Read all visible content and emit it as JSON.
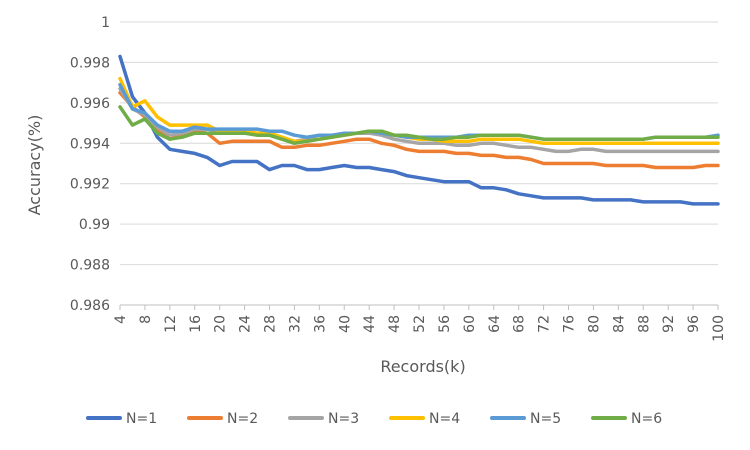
{
  "chart_data": {
    "type": "line",
    "xlabel": "Records(k)",
    "ylabel": "Accuracy(%)",
    "ylim": [
      0.986,
      1
    ],
    "yticks": [
      "0.986",
      "0.988",
      "0.99",
      "0.992",
      "0.994",
      "0.996",
      "0.998",
      "1"
    ],
    "xticks": [
      "4",
      "8",
      "12",
      "16",
      "20",
      "24",
      "28",
      "32",
      "36",
      "40",
      "44",
      "48",
      "52",
      "56",
      "60",
      "64",
      "68",
      "72",
      "76",
      "80",
      "84",
      "88",
      "92",
      "96",
      "100"
    ],
    "grid": "horizontal",
    "legend": "bottom",
    "x": [
      4,
      6,
      8,
      10,
      12,
      14,
      16,
      18,
      20,
      22,
      24,
      26,
      28,
      30,
      32,
      34,
      36,
      38,
      40,
      42,
      44,
      46,
      48,
      50,
      52,
      54,
      56,
      58,
      60,
      62,
      64,
      66,
      68,
      70,
      72,
      74,
      76,
      78,
      80,
      82,
      84,
      86,
      88,
      90,
      92,
      94,
      96,
      98,
      100
    ],
    "series": [
      {
        "name": "N=1",
        "color": "#4472C4",
        "values": [
          0.9983,
          0.9963,
          0.9955,
          0.9943,
          0.9937,
          0.9936,
          0.9935,
          0.9933,
          0.9929,
          0.9931,
          0.9931,
          0.9931,
          0.9927,
          0.9929,
          0.9929,
          0.9927,
          0.9927,
          0.9928,
          0.9929,
          0.9928,
          0.9928,
          0.9927,
          0.9926,
          0.9924,
          0.9923,
          0.9922,
          0.9921,
          0.9921,
          0.9921,
          0.9918,
          0.9918,
          0.9917,
          0.9915,
          0.9914,
          0.9913,
          0.9913,
          0.9913,
          0.9913,
          0.9912,
          0.9912,
          0.9912,
          0.9912,
          0.9911,
          0.9911,
          0.9911,
          0.9911,
          0.991,
          0.991,
          0.991
        ]
      },
      {
        "name": "N=2",
        "color": "#ED7D31",
        "values": [
          0.9965,
          0.9958,
          0.9953,
          0.9947,
          0.9942,
          0.9944,
          0.9946,
          0.9945,
          0.994,
          0.9941,
          0.9941,
          0.9941,
          0.9941,
          0.9938,
          0.9938,
          0.9939,
          0.9939,
          0.994,
          0.9941,
          0.9942,
          0.9942,
          0.994,
          0.9939,
          0.9937,
          0.9936,
          0.9936,
          0.9936,
          0.9935,
          0.9935,
          0.9934,
          0.9934,
          0.9933,
          0.9933,
          0.9932,
          0.993,
          0.993,
          0.993,
          0.993,
          0.993,
          0.9929,
          0.9929,
          0.9929,
          0.9929,
          0.9928,
          0.9928,
          0.9928,
          0.9928,
          0.9929,
          0.9929
        ]
      },
      {
        "name": "N=3",
        "color": "#A5A5A5",
        "values": [
          0.9967,
          0.9957,
          0.9954,
          0.9948,
          0.9944,
          0.9945,
          0.9947,
          0.9947,
          0.9946,
          0.9946,
          0.9946,
          0.9945,
          0.9944,
          0.9942,
          0.9941,
          0.9942,
          0.9942,
          0.9943,
          0.9944,
          0.9945,
          0.9945,
          0.9944,
          0.9942,
          0.9941,
          0.994,
          0.994,
          0.994,
          0.9939,
          0.9939,
          0.994,
          0.994,
          0.9939,
          0.9938,
          0.9938,
          0.9937,
          0.9936,
          0.9936,
          0.9937,
          0.9937,
          0.9936,
          0.9936,
          0.9936,
          0.9936,
          0.9936,
          0.9936,
          0.9936,
          0.9936,
          0.9936,
          0.9936
        ]
      },
      {
        "name": "N=4",
        "color": "#FFC000",
        "values": [
          0.9972,
          0.9958,
          0.9961,
          0.9953,
          0.9949,
          0.9949,
          0.9949,
          0.9949,
          0.9946,
          0.9946,
          0.9946,
          0.9945,
          0.9945,
          0.9943,
          0.9941,
          0.9941,
          0.9942,
          0.9943,
          0.9944,
          0.9945,
          0.9946,
          0.9946,
          0.9944,
          0.9943,
          0.9942,
          0.9942,
          0.9941,
          0.9941,
          0.9941,
          0.9942,
          0.9942,
          0.9942,
          0.9942,
          0.9941,
          0.994,
          0.994,
          0.994,
          0.994,
          0.994,
          0.994,
          0.994,
          0.994,
          0.994,
          0.994,
          0.994,
          0.994,
          0.994,
          0.994,
          0.994
        ]
      },
      {
        "name": "N=5",
        "color": "#5B9BD5",
        "values": [
          0.9969,
          0.9957,
          0.9955,
          0.9949,
          0.9946,
          0.9946,
          0.9948,
          0.9947,
          0.9947,
          0.9947,
          0.9947,
          0.9947,
          0.9946,
          0.9946,
          0.9944,
          0.9943,
          0.9944,
          0.9944,
          0.9945,
          0.9945,
          0.9946,
          0.9945,
          0.9944,
          0.9943,
          0.9943,
          0.9943,
          0.9943,
          0.9943,
          0.9944,
          0.9944,
          0.9944,
          0.9944,
          0.9944,
          0.9943,
          0.9942,
          0.9942,
          0.9942,
          0.9942,
          0.9942,
          0.9942,
          0.9942,
          0.9942,
          0.9942,
          0.9943,
          0.9943,
          0.9943,
          0.9943,
          0.9943,
          0.9944
        ]
      },
      {
        "name": "N=6",
        "color": "#70AD47",
        "values": [
          0.9958,
          0.9949,
          0.9952,
          0.9945,
          0.9942,
          0.9943,
          0.9945,
          0.9945,
          0.9945,
          0.9945,
          0.9945,
          0.9944,
          0.9944,
          0.9942,
          0.994,
          0.9941,
          0.9942,
          0.9943,
          0.9944,
          0.9945,
          0.9946,
          0.9946,
          0.9944,
          0.9944,
          0.9943,
          0.9942,
          0.9942,
          0.9943,
          0.9943,
          0.9944,
          0.9944,
          0.9944,
          0.9944,
          0.9943,
          0.9942,
          0.9942,
          0.9942,
          0.9942,
          0.9942,
          0.9942,
          0.9942,
          0.9942,
          0.9942,
          0.9943,
          0.9943,
          0.9943,
          0.9943,
          0.9943,
          0.9943
        ]
      }
    ]
  }
}
